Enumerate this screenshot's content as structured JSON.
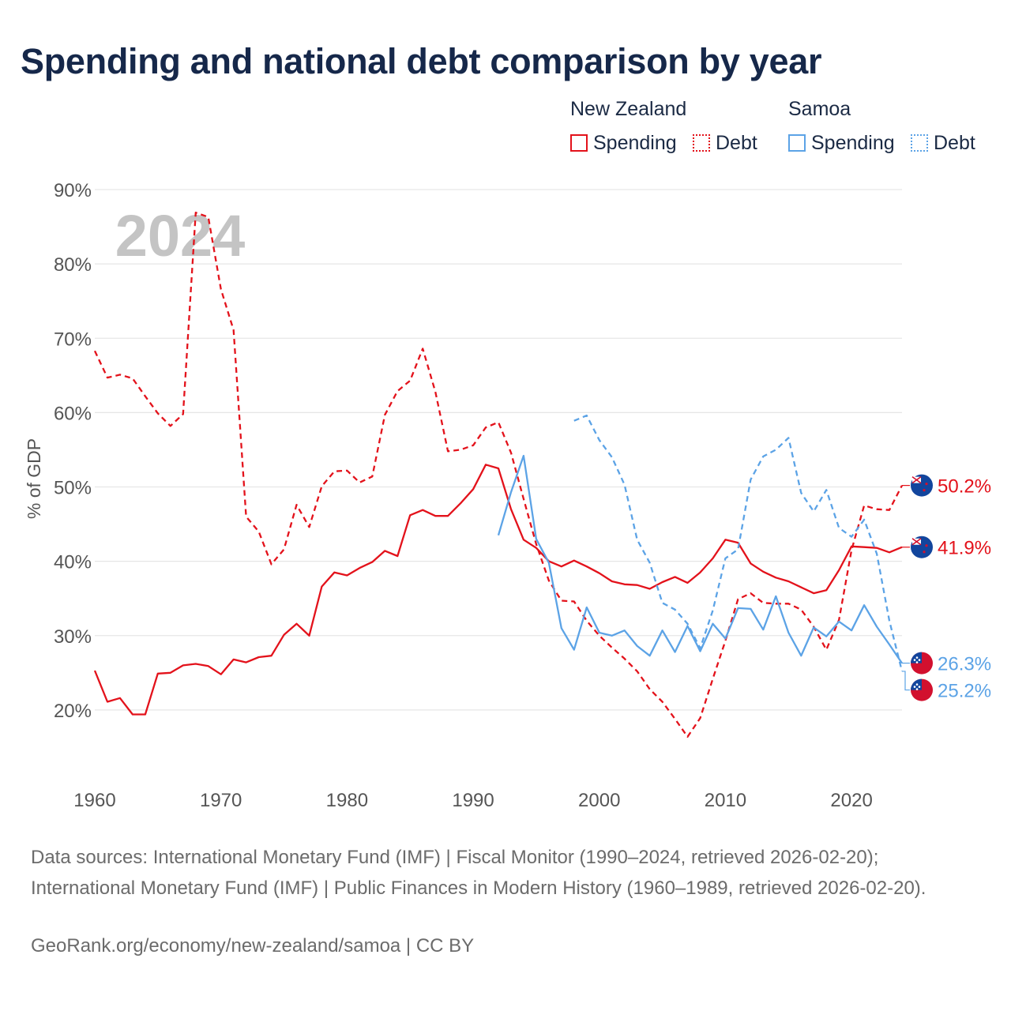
{
  "title": "Spending and national debt comparison by year",
  "colors": {
    "nz": "#e3121b",
    "samoa": "#5ca3e6",
    "grid": "#e6e6e6",
    "axis": "#555555",
    "year_watermark": "#c4c4c4",
    "flag_blue": "#12459d",
    "flag_red": "#d2102e"
  },
  "legend": {
    "groups": [
      {
        "name": "New Zealand",
        "items": [
          {
            "label": "Spending",
            "style": "solid"
          },
          {
            "label": "Debt",
            "style": "dotted"
          }
        ]
      },
      {
        "name": "Samoa",
        "items": [
          {
            "label": "Spending",
            "style": "solid"
          },
          {
            "label": "Debt",
            "style": "dotted"
          }
        ]
      }
    ]
  },
  "footer": {
    "sources": "Data sources: International Monetary Fund (IMF) | Fiscal Monitor (1990–2024, retrieved 2026-02-20); International Monetary Fund (IMF) | Public Finances in Modern History (1960–1989, retrieved 2026-02-20).",
    "credit": "GeoRank.org/economy/new-zealand/samoa | CC BY"
  },
  "chart_data": {
    "type": "line",
    "year_label": "2024",
    "ylabel": "% of GDP",
    "xlim": [
      1960,
      2024
    ],
    "ylim": [
      10,
      90
    ],
    "xticks": [
      1960,
      1970,
      1980,
      1990,
      2000,
      2010,
      2020
    ],
    "xtick_labels": [
      "1960",
      "1970",
      "1980",
      "1990",
      "2000",
      "2010",
      "2020"
    ],
    "yticks": [
      20,
      30,
      40,
      50,
      60,
      70,
      80,
      90
    ],
    "ytick_labels": [
      "20%",
      "30%",
      "40%",
      "50%",
      "60%",
      "70%",
      "80%",
      "90%"
    ],
    "series": [
      {
        "name": "New Zealand Spending",
        "country": "nz",
        "dash": false,
        "end_label": "41.9%",
        "end_flag": "nz",
        "start_year": 1960,
        "values": [
          25.3,
          21.1,
          21.6,
          19.4,
          19.4,
          24.9,
          25.0,
          26.0,
          26.2,
          25.9,
          24.8,
          26.8,
          26.4,
          27.1,
          27.3,
          30.1,
          31.6,
          30.0,
          36.6,
          38.5,
          38.1,
          39.1,
          39.9,
          41.4,
          40.7,
          46.2,
          46.9,
          46.1,
          46.1,
          47.8,
          49.7,
          53.0,
          52.5,
          47.0,
          42.9,
          41.8,
          40.0,
          39.3,
          40.1,
          39.3,
          38.4,
          37.3,
          36.9,
          36.8,
          36.3,
          37.2,
          37.9,
          37.1,
          38.5,
          40.4,
          42.9,
          42.5,
          39.7,
          38.6,
          37.8,
          37.3,
          36.5,
          35.7,
          36.1,
          38.8,
          42.0,
          41.9,
          41.8,
          41.2,
          41.9
        ]
      },
      {
        "name": "New Zealand Debt",
        "country": "nz",
        "dash": true,
        "end_label": "50.2%",
        "end_flag": "nz",
        "start_year": 1960,
        "values": [
          68.3,
          64.7,
          65.1,
          64.6,
          62.2,
          59.9,
          58.2,
          59.8,
          86.9,
          86.3,
          76.6,
          71.1,
          46.0,
          44.0,
          39.6,
          41.6,
          47.6,
          44.6,
          50.1,
          52.1,
          52.2,
          50.6,
          51.4,
          59.7,
          62.9,
          64.3,
          68.6,
          62.8,
          54.8,
          55.0,
          55.6,
          58.0,
          58.7,
          54.6,
          48.4,
          42.3,
          37.4,
          34.7,
          34.6,
          32.0,
          30.0,
          28.4,
          26.9,
          25.2,
          22.8,
          21.1,
          18.8,
          16.4,
          18.9,
          24.2,
          29.3,
          34.9,
          35.7,
          34.4,
          34.3,
          34.3,
          33.5,
          31.2,
          28.1,
          32.1,
          41.5,
          47.5,
          47.0,
          46.9,
          50.2
        ]
      },
      {
        "name": "Samoa Spending",
        "country": "samoa",
        "dash": false,
        "end_label": "26.3%",
        "end_flag": "samoa",
        "start_year": 1992,
        "values": [
          43.5,
          49.3,
          54.2,
          43.0,
          39.8,
          31.0,
          28.1,
          33.8,
          30.4,
          30.0,
          30.7,
          28.6,
          27.3,
          30.7,
          27.8,
          31.3,
          27.9,
          31.6,
          29.6,
          33.7,
          33.6,
          30.8,
          35.3,
          30.4,
          27.3,
          31.1,
          29.9,
          31.9,
          30.7,
          34.1,
          31.2,
          28.8,
          26.3
        ]
      },
      {
        "name": "Samoa Debt",
        "country": "samoa",
        "dash": true,
        "end_label": "25.2%",
        "end_flag": "samoa",
        "start_year": 1998,
        "values": [
          58.9,
          59.6,
          56.3,
          54.0,
          50.3,
          42.9,
          39.8,
          34.4,
          33.5,
          31.6,
          28.3,
          33.4,
          40.4,
          41.6,
          51.0,
          54.1,
          55.0,
          56.6,
          49.2,
          46.7,
          49.6,
          44.5,
          43.3,
          45.6,
          41.0,
          32.0,
          25.2
        ]
      }
    ]
  }
}
